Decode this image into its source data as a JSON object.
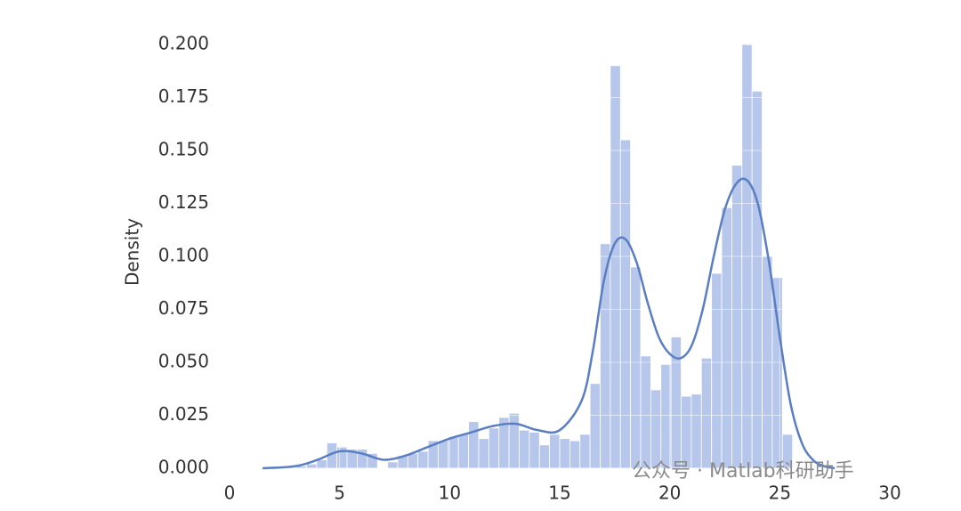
{
  "chart_data": {
    "type": "histogram",
    "ylabel": "Density",
    "bins": [
      3.04,
      3.5,
      3.96,
      4.42,
      4.88,
      5.34,
      5.8,
      6.26,
      6.72,
      7.18,
      7.64,
      8.1,
      8.56,
      9.02,
      9.48,
      9.94,
      10.4,
      10.86,
      11.32,
      11.78,
      12.24,
      12.7,
      13.16,
      13.62,
      14.08,
      14.54,
      15.0,
      15.46,
      15.92,
      16.38,
      16.84,
      17.3,
      17.76,
      18.22,
      18.68,
      19.14,
      19.6,
      20.06,
      20.52,
      20.98,
      21.44,
      21.9,
      22.36,
      22.82,
      23.28,
      23.74,
      24.2,
      24.66,
      25.12,
      25.58
    ],
    "counts": [
      0.001,
      0.002,
      0.004,
      0.012,
      0.01,
      0.009,
      0.009,
      0.007,
      0,
      0.003,
      0.006,
      0.007,
      0.008,
      0.013,
      0.013,
      0.015,
      0.016,
      0.022,
      0.014,
      0.019,
      0.024,
      0.026,
      0.018,
      0.017,
      0.011,
      0.016,
      0.014,
      0.013,
      0.016,
      0.04,
      0.106,
      0.19,
      0.155,
      0.095,
      0.053,
      0.037,
      0.049,
      0.062,
      0.034,
      0.035,
      0.052,
      0.092,
      0.123,
      0.143,
      0.2,
      0.178,
      0.1,
      0.09,
      0.016
    ],
    "color": "#a9bde8",
    "kde": {
      "color": "#5b7ec2",
      "x": [
        1.5,
        3,
        4,
        5,
        6,
        7,
        8,
        9,
        10,
        11,
        12,
        13,
        14,
        15,
        16,
        16.5,
        17,
        17.5,
        18,
        18.5,
        19,
        19.5,
        20,
        20.5,
        21,
        21.5,
        22,
        22.5,
        23,
        23.5,
        24,
        24.5,
        25,
        25.5,
        26,
        26.5,
        27,
        27.5
      ],
      "values": [
        0,
        0.001,
        0.004,
        0.008,
        0.007,
        0.004,
        0.006,
        0.01,
        0.014,
        0.017,
        0.02,
        0.021,
        0.018,
        0.018,
        0.032,
        0.055,
        0.088,
        0.106,
        0.108,
        0.097,
        0.078,
        0.062,
        0.054,
        0.052,
        0.058,
        0.075,
        0.1,
        0.122,
        0.134,
        0.136,
        0.125,
        0.098,
        0.062,
        0.03,
        0.012,
        0.004,
        0.001,
        0
      ]
    },
    "xlim": [
      0,
      30
    ],
    "xticks": [
      0,
      5,
      10,
      15,
      20,
      25,
      30
    ],
    "ylim": [
      0,
      0.2
    ],
    "yticks": [
      {
        "value": 0,
        "label": "0.000"
      },
      {
        "value": 0.025,
        "label": "0.025"
      },
      {
        "value": 0.05,
        "label": "0.050"
      },
      {
        "value": 0.075,
        "label": "0.075"
      },
      {
        "value": 0.1,
        "label": "0.100"
      },
      {
        "value": 0.125,
        "label": "0.125"
      },
      {
        "value": 0.15,
        "label": "0.150"
      },
      {
        "value": 0.175,
        "label": "0.175"
      },
      {
        "value": 0.2,
        "label": "0.200"
      }
    ],
    "grid": true,
    "watermark": "公众号 · Matlab科研助手"
  }
}
